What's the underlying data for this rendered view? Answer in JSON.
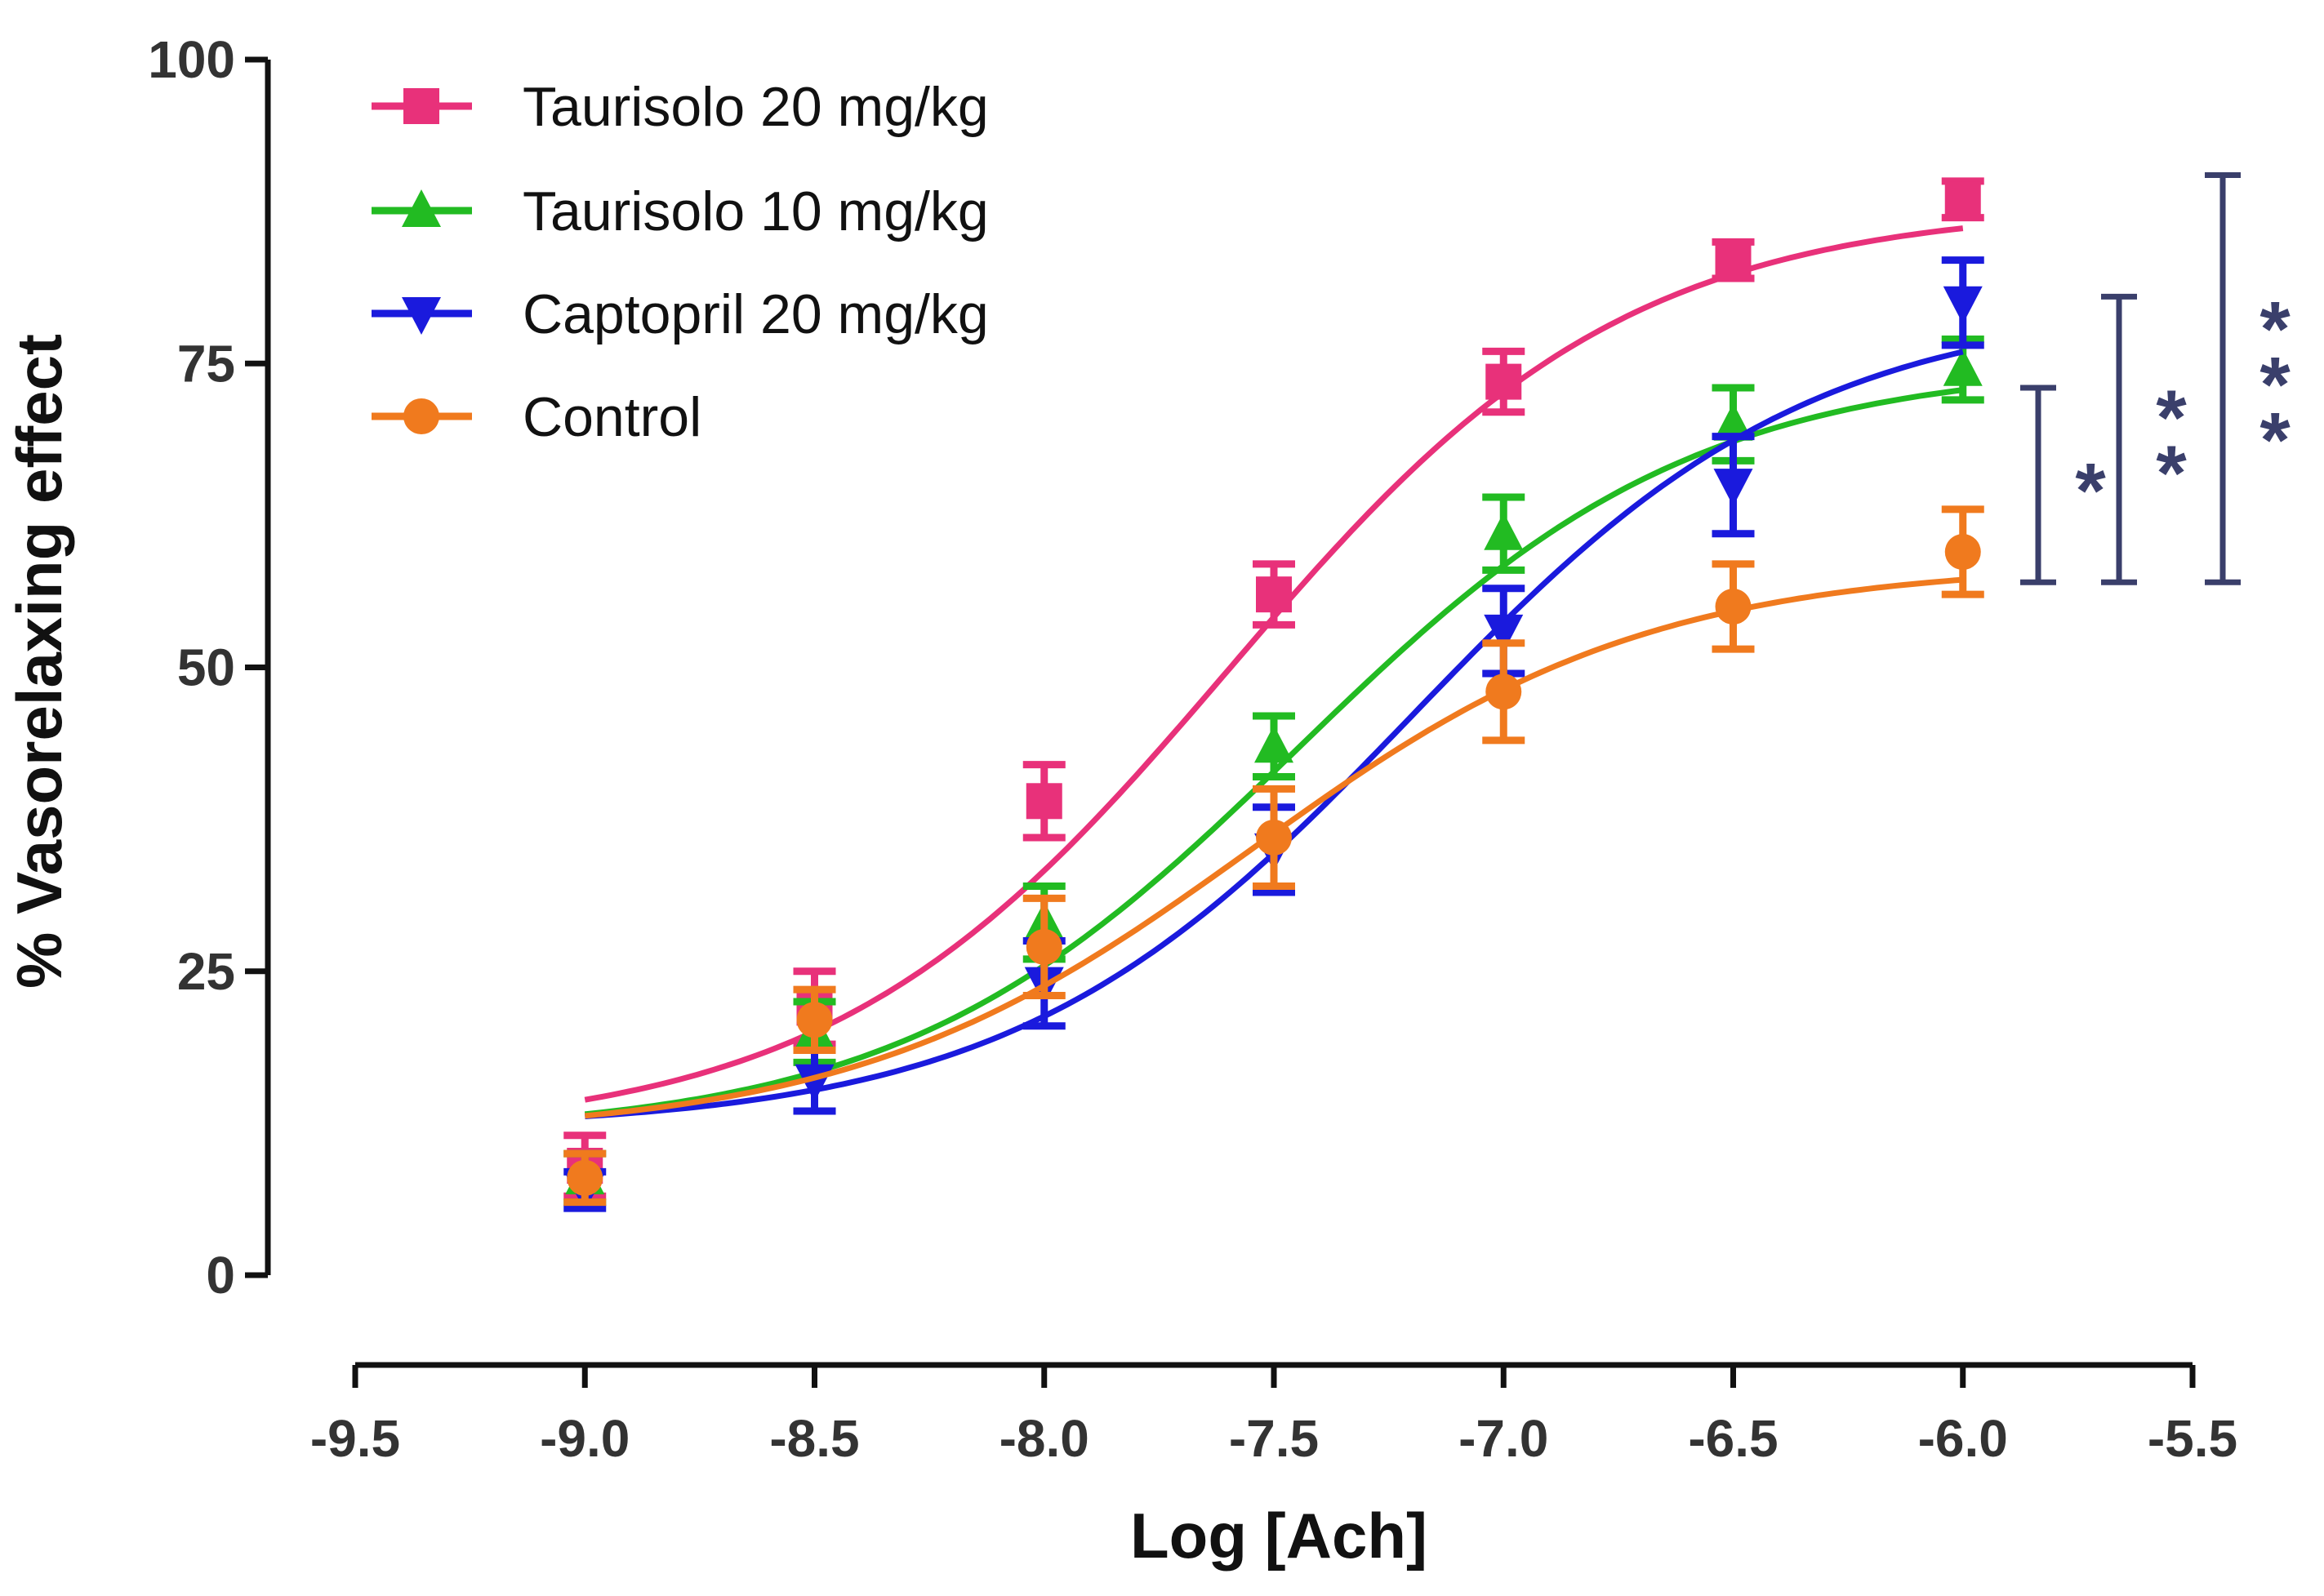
{
  "chart_data": {
    "type": "line",
    "title": "",
    "xlabel": "Log [Ach]",
    "ylabel": "% Vasorelaxing effect",
    "xlim": [
      -9.5,
      -5.5
    ],
    "ylim": [
      0,
      100
    ],
    "x_ticks": [
      "-9.5",
      "-9.0",
      "-8.5",
      "-8.0",
      "-7.5",
      "-7.0",
      "-6.5",
      "-6.0",
      "-5.5"
    ],
    "y_ticks": [
      "0",
      "25",
      "50",
      "75",
      "100"
    ],
    "x": [
      -9.0,
      -8.5,
      -8.0,
      -7.5,
      -7.0,
      -6.5,
      -6.0
    ],
    "legend_position": "top-left",
    "series": [
      {
        "name": "Taurisolo 20 mg/kg",
        "color": "#E8317A",
        "marker": "square",
        "values": [
          9,
          22,
          39,
          56,
          73.5,
          83.5,
          88.5
        ],
        "errors": [
          2.5,
          3,
          3,
          2.5,
          2.5,
          1.5,
          1.5
        ],
        "fit": {
          "bottom": 11.5,
          "top": 88,
          "logEC50": -7.6,
          "hill": 1.0
        }
      },
      {
        "name": "Taurisolo 10 mg/kg",
        "color": "#22BB22",
        "marker": "triangle-up",
        "values": [
          8,
          20,
          29,
          43.5,
          61,
          70,
          74.5
        ],
        "errors": [
          2,
          2.5,
          3,
          2.5,
          3,
          3,
          2.5
        ],
        "fit": {
          "bottom": 11.5,
          "top": 75,
          "logEC50": -7.45,
          "hill": 1.0
        }
      },
      {
        "name": "Captopril 20 mg/kg",
        "color": "#1A1ADD",
        "marker": "triangle-down",
        "values": [
          7,
          16,
          24,
          35,
          53,
          65,
          80
        ],
        "errors": [
          1.5,
          2.5,
          3.5,
          3.5,
          3.5,
          4,
          3.5
        ],
        "fit": {
          "bottom": 12,
          "top": 80,
          "logEC50": -7.2,
          "hill": 1.0
        }
      },
      {
        "name": "Control",
        "color": "#F07A1E",
        "marker": "circle",
        "values": [
          8,
          21,
          27,
          36,
          48,
          55,
          59.5
        ],
        "errors": [
          2,
          2.5,
          4,
          4,
          4,
          3.5,
          3.5
        ],
        "fit": {
          "bottom": 11.5,
          "top": 58.5,
          "logEC50": -7.55,
          "hill": 1.0
        }
      }
    ],
    "significance": [
      {
        "label": "*",
        "from": 57,
        "to": 73,
        "color": "#3A3F6B"
      },
      {
        "label": "**",
        "from": 57,
        "to": 80.5,
        "color": "#3A3F6B"
      },
      {
        "label": "***",
        "from": 57,
        "to": 90.5,
        "color": "#3A3F6B"
      }
    ]
  }
}
